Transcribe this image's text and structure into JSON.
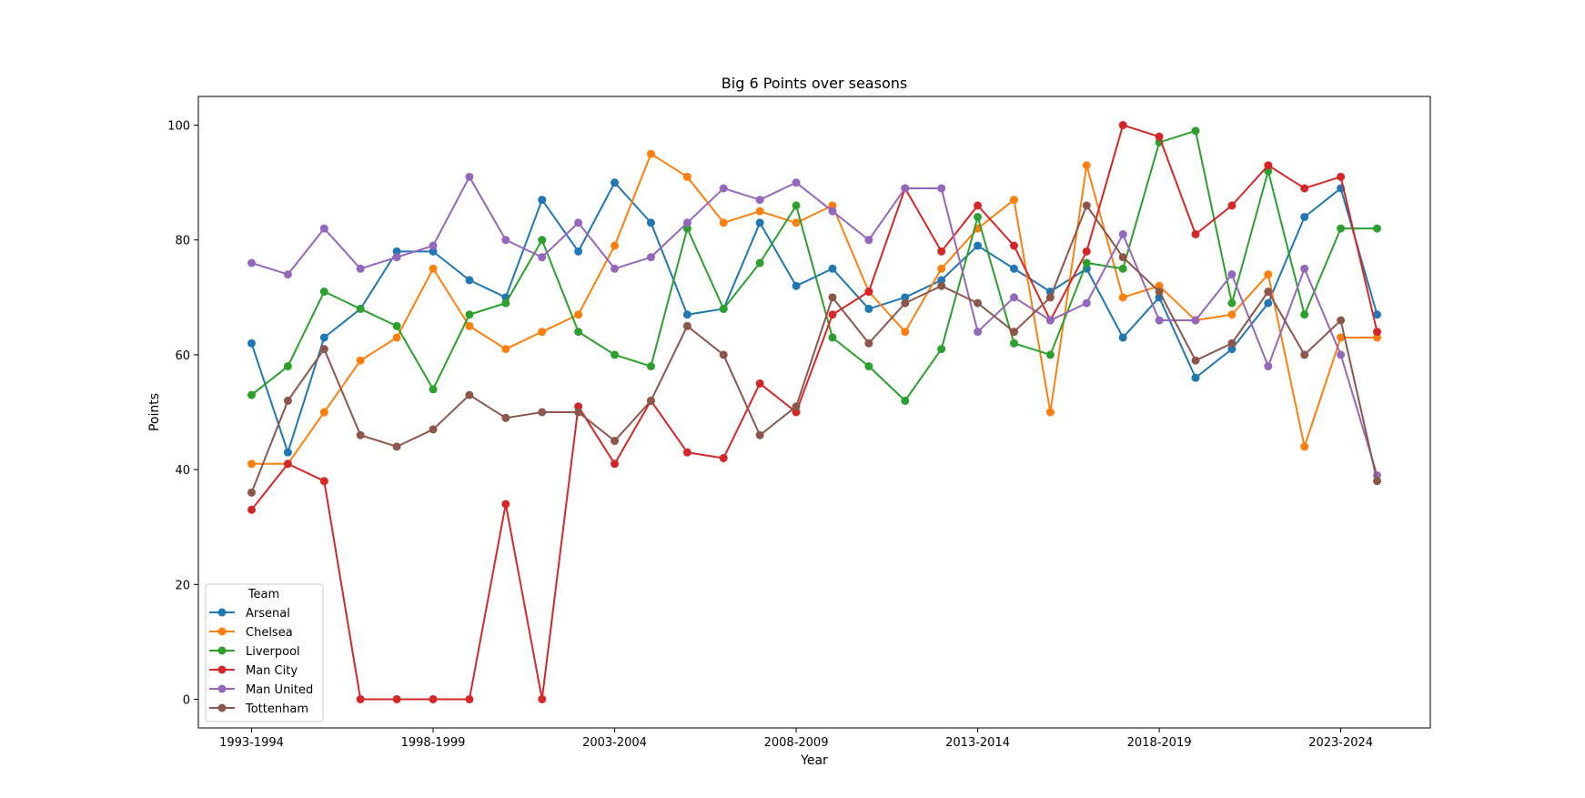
{
  "chart_data": {
    "type": "line",
    "title": "Big 6 Points over seasons",
    "xlabel": "Year",
    "ylabel": "Points",
    "ylim": [
      -5,
      105
    ],
    "yticks": [
      0,
      20,
      40,
      60,
      80,
      100
    ],
    "grid": false,
    "legend": {
      "title": "Team",
      "placement": "lower-left"
    },
    "categories": [
      "1993-1994",
      "1994-1995",
      "1995-1996",
      "1996-1997",
      "1997-1998",
      "1998-1999",
      "1999-2000",
      "2000-2001",
      "2001-2002",
      "2002-2003",
      "2003-2004",
      "2004-2005",
      "2005-2006",
      "2006-2007",
      "2007-2008",
      "2008-2009",
      "2009-2010",
      "2010-2011",
      "2011-2012",
      "2012-2013",
      "2013-2014",
      "2014-2015",
      "2015-2016",
      "2016-2017",
      "2017-2018",
      "2018-2019",
      "2019-2020",
      "2020-2021",
      "2021-2022",
      "2022-2023",
      "2023-2024",
      "2024-2025"
    ],
    "xtick_labels": [
      "1993-1994",
      "1998-1999",
      "2003-2004",
      "2008-2009",
      "2013-2014",
      "2018-2019",
      "2023-2024"
    ],
    "series": [
      {
        "name": "Arsenal",
        "color": "#1f77b4",
        "values": [
          62,
          43,
          63,
          68,
          78,
          78,
          73,
          70,
          87,
          78,
          90,
          83,
          67,
          68,
          83,
          72,
          75,
          68,
          70,
          73,
          79,
          75,
          71,
          75,
          63,
          70,
          56,
          61,
          69,
          84,
          89,
          67
        ]
      },
      {
        "name": "Chelsea",
        "color": "#ff7f0e",
        "values": [
          41,
          41,
          50,
          59,
          63,
          75,
          65,
          61,
          64,
          67,
          79,
          95,
          91,
          83,
          85,
          83,
          86,
          71,
          64,
          75,
          82,
          87,
          50,
          93,
          70,
          72,
          66,
          67,
          74,
          44,
          63,
          63
        ]
      },
      {
        "name": "Liverpool",
        "color": "#2ca02c",
        "values": [
          53,
          58,
          71,
          68,
          65,
          54,
          67,
          69,
          80,
          64,
          60,
          58,
          82,
          68,
          76,
          86,
          63,
          58,
          52,
          61,
          84,
          62,
          60,
          76,
          75,
          97,
          99,
          69,
          92,
          67,
          82,
          82
        ]
      },
      {
        "name": "Man City",
        "color": "#d62728",
        "values": [
          33,
          41,
          38,
          0,
          0,
          0,
          0,
          34,
          0,
          51,
          41,
          52,
          43,
          42,
          55,
          50,
          67,
          71,
          89,
          78,
          86,
          79,
          66,
          78,
          100,
          98,
          81,
          86,
          93,
          89,
          91,
          64
        ]
      },
      {
        "name": "Man United",
        "color": "#9467bd",
        "values": [
          76,
          74,
          82,
          75,
          77,
          79,
          91,
          80,
          77,
          83,
          75,
          77,
          83,
          89,
          87,
          90,
          85,
          80,
          89,
          89,
          64,
          70,
          66,
          69,
          81,
          66,
          66,
          74,
          58,
          75,
          60,
          39
        ]
      },
      {
        "name": "Tottenham",
        "color": "#8c564b",
        "values": [
          36,
          52,
          61,
          46,
          44,
          47,
          53,
          49,
          50,
          50,
          45,
          52,
          65,
          60,
          46,
          51,
          70,
          62,
          69,
          72,
          69,
          64,
          70,
          86,
          77,
          71,
          59,
          62,
          71,
          60,
          66,
          38
        ]
      }
    ]
  }
}
